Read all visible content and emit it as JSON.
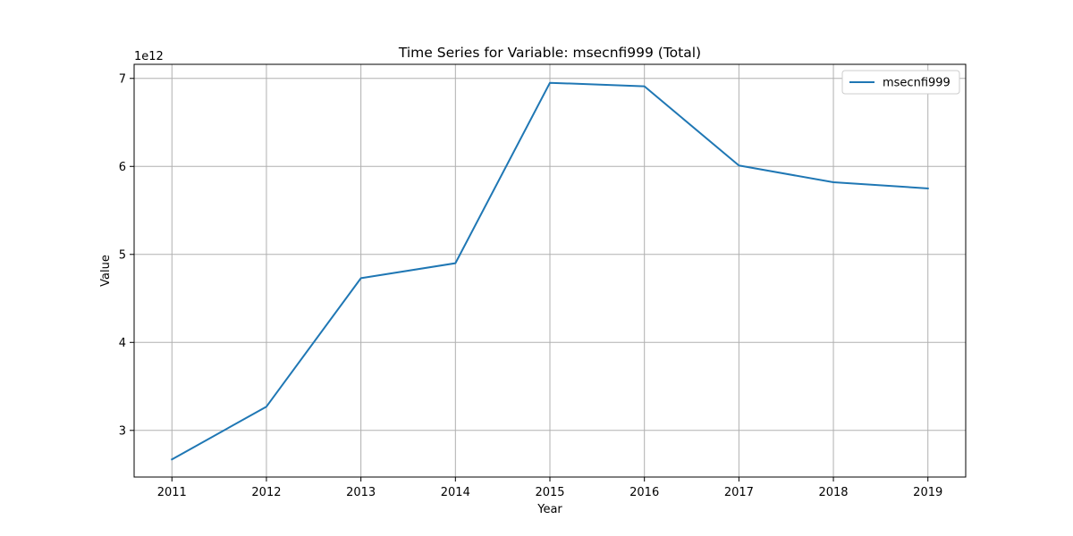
{
  "chart_data": {
    "type": "line",
    "title": "Time Series for Variable: msecnfi999 (Total)",
    "xlabel": "Year",
    "ylabel": "Value",
    "y_offset_label": "1e12",
    "y_scale_factor": 1000000000000.0,
    "grid": true,
    "legend_position": "top-right",
    "xlim": [
      2010.6,
      2019.4
    ],
    "ylim": [
      2470000000000.0,
      7160000000000.0
    ],
    "x_ticks": [
      "2011",
      "2012",
      "2013",
      "2014",
      "2015",
      "2016",
      "2017",
      "2018",
      "2019"
    ],
    "y_ticks": [
      "3",
      "4",
      "5",
      "6",
      "7"
    ],
    "x": [
      2011,
      2012,
      2013,
      2014,
      2015,
      2016,
      2017,
      2018,
      2019
    ],
    "series": [
      {
        "name": "msecnfi999",
        "color": "#1f77b4",
        "values": [
          2670000000000.0,
          3270000000000.0,
          4730000000000.0,
          4900000000000.0,
          6950000000000.0,
          6910000000000.0,
          6010000000000.0,
          5820000000000.0,
          5750000000000.0
        ]
      }
    ]
  }
}
